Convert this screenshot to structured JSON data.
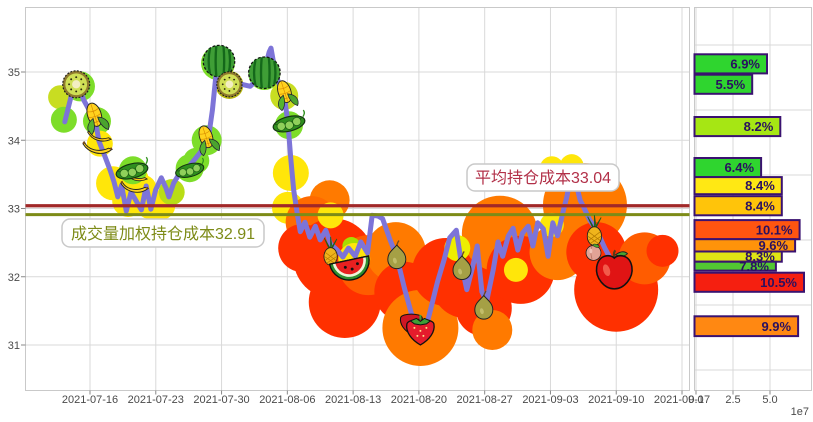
{
  "colors": {
    "background": "#ffffff",
    "grid": "#d9d9d9",
    "frame": "#c9c9c9",
    "axis_text": "#4a4a4a",
    "price_line": "#7d74d8",
    "avg_cost_line": "#a12828",
    "vwap_cost_line": "#7d8b17",
    "avg_label_text": "#b23048",
    "vwap_label_text": "#7d8b17",
    "bar_border": "#3a1270",
    "bar_text": "#2a1060"
  },
  "chart_data": [
    {
      "type": "line",
      "name": "price-with-holding-cost",
      "x_tick_labels": [
        "2021-07-16",
        "2021-07-23",
        "2021-07-30",
        "2021-08-06",
        "2021-08-13",
        "2021-08-20",
        "2021-08-27",
        "2021-09-03",
        "2021-09-10",
        "2021-09-17"
      ],
      "y_tick_labels": [
        "35",
        "34",
        "33",
        "32",
        "31"
      ],
      "y_ticks": [
        35,
        34,
        33,
        32,
        31
      ],
      "ylim": [
        30.4,
        35.9
      ],
      "grid": true,
      "cost_lines": [
        {
          "label": "平均持仓成本33.04",
          "value": 33.04,
          "color": "#a12828",
          "text_color": "#b23048"
        },
        {
          "label": "成交量加权持仓成本32.91",
          "value": 32.91,
          "color": "#7d8b17",
          "text_color": "#7d8b17"
        }
      ],
      "series": [
        {
          "name": "price",
          "points": [
            [
              4.0,
              34.27
            ],
            [
              4.7,
              34.66
            ],
            [
              5.3,
              34.87
            ],
            [
              6.0,
              34.59
            ],
            [
              6.7,
              34.41
            ],
            [
              7.2,
              34.31
            ],
            [
              7.6,
              33.99
            ],
            [
              8.2,
              33.78
            ],
            [
              8.8,
              33.56
            ],
            [
              9.2,
              33.39
            ],
            [
              9.6,
              33.17
            ],
            [
              10.0,
              33.34
            ],
            [
              10.5,
              32.96
            ],
            [
              11.0,
              33.24
            ],
            [
              11.5,
              33.12
            ],
            [
              12.1,
              32.98
            ],
            [
              12.6,
              33.33
            ],
            [
              13.1,
              32.99
            ],
            [
              13.6,
              33.27
            ],
            [
              14.2,
              33.45
            ],
            [
              14.7,
              33.3
            ],
            [
              15.0,
              33.17
            ],
            [
              15.5,
              33.37
            ],
            [
              16.2,
              33.53
            ],
            [
              16.9,
              33.58
            ],
            [
              17.8,
              33.73
            ],
            [
              18.6,
              33.87
            ],
            [
              19.1,
              33.95
            ],
            [
              19.6,
              34.44
            ],
            [
              20.1,
              35.12
            ],
            [
              20.6,
              34.88
            ],
            [
              21.3,
              34.82
            ],
            [
              22.0,
              34.77
            ],
            [
              22.7,
              34.82
            ],
            [
              23.6,
              34.79
            ],
            [
              24.3,
              34.88
            ],
            [
              25.0,
              34.97
            ],
            [
              25.6,
              35.29
            ],
            [
              25.8,
              35.35
            ],
            [
              26.3,
              34.96
            ],
            [
              26.9,
              34.74
            ],
            [
              27.2,
              34.66
            ],
            [
              27.6,
              34.24
            ],
            [
              27.9,
              33.71
            ],
            [
              28.2,
              33.27
            ],
            [
              28.6,
              32.9
            ],
            [
              28.9,
              32.66
            ],
            [
              29.4,
              32.8
            ],
            [
              29.9,
              32.58
            ],
            [
              30.5,
              32.74
            ],
            [
              31.0,
              32.54
            ],
            [
              31.6,
              32.68
            ],
            [
              32.1,
              32.48
            ],
            [
              32.8,
              32.39
            ],
            [
              33.4,
              32.29
            ],
            [
              34.0,
              32.42
            ],
            [
              34.7,
              32.3
            ],
            [
              35.3,
              32.51
            ],
            [
              36.0,
              32.35
            ],
            [
              36.5,
              32.9
            ],
            [
              37.1,
              32.89
            ],
            [
              37.6,
              32.85
            ],
            [
              38.4,
              32.54
            ],
            [
              39.1,
              32.29
            ],
            [
              39.9,
              31.84
            ],
            [
              40.6,
              31.48
            ],
            [
              41.3,
              31.22
            ],
            [
              42.0,
              31.16
            ],
            [
              42.6,
              31.48
            ],
            [
              43.4,
              31.92
            ],
            [
              44.1,
              32.25
            ],
            [
              44.7,
              32.57
            ],
            [
              45.4,
              32.68
            ],
            [
              46.0,
              32.14
            ],
            [
              46.5,
              31.81
            ],
            [
              47.1,
              32.13
            ],
            [
              47.6,
              32.45
            ],
            [
              48.1,
              31.78
            ],
            [
              48.6,
              31.64
            ],
            [
              49.3,
              32.1
            ],
            [
              49.8,
              32.51
            ],
            [
              50.3,
              32.3
            ],
            [
              50.9,
              32.6
            ],
            [
              51.4,
              32.71
            ],
            [
              51.9,
              32.39
            ],
            [
              52.4,
              32.64
            ],
            [
              53.0,
              32.74
            ],
            [
              53.5,
              32.45
            ],
            [
              54.0,
              32.79
            ],
            [
              54.6,
              32.7
            ],
            [
              55.1,
              32.3
            ],
            [
              55.6,
              32.79
            ],
            [
              56.1,
              32.6
            ],
            [
              56.7,
              32.96
            ],
            [
              57.1,
              33.18
            ],
            [
              57.6,
              33.56
            ],
            [
              58.1,
              33.34
            ],
            [
              58.5,
              33.12
            ],
            [
              59.0,
              32.98
            ],
            [
              59.5,
              32.83
            ],
            [
              60.1,
              32.71
            ],
            [
              60.6,
              32.57
            ],
            [
              61.1,
              32.42
            ],
            [
              61.6,
              32.29
            ],
            [
              62.2,
              32.19
            ],
            [
              62.7,
              32.1
            ],
            [
              63.1,
              32.06
            ]
          ]
        }
      ],
      "bubbles": [
        [
          3.5,
          34.63,
          12,
          "#c8dd22"
        ],
        [
          3.9,
          34.3,
          13,
          "#7ddd2a"
        ],
        [
          5.6,
          34.79,
          15,
          "#7ddd2a"
        ],
        [
          7.4,
          34.28,
          14,
          "#7ddd2a"
        ],
        [
          7.7,
          33.95,
          13,
          "#ffe60a"
        ],
        [
          9.1,
          33.37,
          17,
          "#ffe60a"
        ],
        [
          10.7,
          33.11,
          16,
          "#ffe60a"
        ],
        [
          11.4,
          33.42,
          14,
          "#ffe60a"
        ],
        [
          12.3,
          33.3,
          13,
          "#ffe60a"
        ],
        [
          13.0,
          33.05,
          14,
          "#ffe60a"
        ],
        [
          14.1,
          33.05,
          15,
          "#ffe60a"
        ],
        [
          11.2,
          33.56,
          14,
          "#7ddd2a"
        ],
        [
          15.3,
          33.24,
          13,
          "#b8dd16"
        ],
        [
          17.2,
          33.59,
          14,
          "#7ddd2a"
        ],
        [
          17.9,
          33.7,
          13,
          "#7ddd2a"
        ],
        [
          19.0,
          34.0,
          15,
          "#7ddd2a"
        ],
        [
          20.2,
          35.13,
          17,
          "#7ddd2a"
        ],
        [
          21.4,
          34.81,
          14,
          "#b5b411"
        ],
        [
          25.1,
          34.97,
          16,
          "#7ddd2a"
        ],
        [
          27.2,
          34.65,
          14,
          "#c8dd22"
        ],
        [
          27.7,
          34.22,
          14,
          "#7ddd2a"
        ],
        [
          27.9,
          33.52,
          18,
          "#ffe60a"
        ],
        [
          27.6,
          33.01,
          16,
          "#ffe60a"
        ],
        [
          32.0,
          33.12,
          20,
          "#ff7a00"
        ],
        [
          30.1,
          32.8,
          26,
          "#ff6a00"
        ],
        [
          29.1,
          32.42,
          24,
          "#ff3000"
        ],
        [
          32.4,
          32.27,
          40,
          "#ff3000"
        ],
        [
          33.6,
          31.63,
          36,
          "#ff3000"
        ],
        [
          36.1,
          32.17,
          30,
          "#ff5c00"
        ],
        [
          39.0,
          32.36,
          30,
          "#ff7a00"
        ],
        [
          39.9,
          31.78,
          30,
          "#ff3000"
        ],
        [
          41.6,
          31.25,
          38,
          "#ff7a00"
        ],
        [
          44.3,
          32.07,
          34,
          "#ff3000"
        ],
        [
          46.4,
          31.89,
          34,
          "#ff3000"
        ],
        [
          48.3,
          31.54,
          28,
          "#ff3000"
        ],
        [
          49.2,
          31.22,
          20,
          "#ff7a00"
        ],
        [
          50.0,
          32.63,
          38,
          "#ff7a00"
        ],
        [
          52.2,
          32.1,
          34,
          "#ff3000"
        ],
        [
          56.1,
          32.36,
          28,
          "#ff7a00"
        ],
        [
          59.0,
          33.05,
          42,
          "#ff7a00"
        ],
        [
          60.2,
          32.36,
          30,
          "#ff3000"
        ],
        [
          62.3,
          31.81,
          42,
          "#ff3000"
        ],
        [
          65.3,
          32.27,
          26,
          "#ff5c00"
        ],
        [
          67.2,
          32.38,
          16,
          "#ff3000"
        ],
        [
          32.1,
          32.9,
          13,
          "#ffe60a"
        ],
        [
          34.3,
          32.45,
          9,
          "#a8dd00"
        ],
        [
          34.6,
          32.26,
          16,
          "#ffe60a"
        ],
        [
          45.5,
          32.42,
          13,
          "#eeee00"
        ],
        [
          51.7,
          32.1,
          12,
          "#ffe60a"
        ],
        [
          55.5,
          33.59,
          12,
          "#ffe60a"
        ],
        [
          57.6,
          33.62,
          12,
          "#ffe60a"
        ],
        [
          55.5,
          32.76,
          12,
          "#ffe60a"
        ]
      ],
      "fruits": [
        {
          "type": "kiwi",
          "day": 5.2,
          "price": 34.82,
          "size": 30
        },
        {
          "type": "corn",
          "day": 7.2,
          "price": 34.34,
          "size": 32
        },
        {
          "type": "banana",
          "day": 7.6,
          "price": 33.97,
          "size": 32
        },
        {
          "type": "banana",
          "day": 11.5,
          "price": 33.39,
          "size": 30
        },
        {
          "type": "peas",
          "day": 11.1,
          "price": 33.55,
          "size": 36
        },
        {
          "type": "peas",
          "day": 17.2,
          "price": 33.56,
          "size": 32
        },
        {
          "type": "corn",
          "day": 19.0,
          "price": 34.02,
          "size": 30
        },
        {
          "type": "watermelon",
          "day": 20.3,
          "price": 35.16,
          "size": 36
        },
        {
          "type": "kiwi",
          "day": 21.4,
          "price": 34.82,
          "size": 28
        },
        {
          "type": "watermelon",
          "day": 25.1,
          "price": 34.99,
          "size": 36
        },
        {
          "type": "corn",
          "day": 27.3,
          "price": 34.68,
          "size": 30
        },
        {
          "type": "peas",
          "day": 27.7,
          "price": 34.24,
          "size": 36
        },
        {
          "type": "pineapple",
          "day": 32.1,
          "price": 32.36,
          "size": 28
        },
        {
          "type": "melon-slice",
          "day": 34.0,
          "price": 32.29,
          "size": 42
        },
        {
          "type": "pear",
          "day": 39.1,
          "price": 32.3,
          "size": 30
        },
        {
          "type": "strawberry",
          "day": 41.6,
          "price": 31.25,
          "size": 40
        },
        {
          "type": "pear",
          "day": 46.0,
          "price": 32.14,
          "size": 30
        },
        {
          "type": "pear",
          "day": 48.3,
          "price": 31.56,
          "size": 30
        },
        {
          "type": "pineapple",
          "day": 60.0,
          "price": 32.66,
          "size": 30
        },
        {
          "type": "peach",
          "day": 59.9,
          "price": 32.35,
          "size": 26
        },
        {
          "type": "apple",
          "day": 62.1,
          "price": 32.08,
          "size": 44
        }
      ]
    },
    {
      "type": "bar",
      "name": "chip-distribution",
      "orientation": "horizontal",
      "x_tick_labels": [
        "0.0",
        "2.5",
        "5.0"
      ],
      "x_unit": "1e7",
      "bars": [
        {
          "label": "6.9%",
          "value_e7": 4.9,
          "band": [
            35.26,
            34.98
          ],
          "color": "#2fd52f"
        },
        {
          "label": "5.5%",
          "value_e7": 3.9,
          "band": [
            34.96,
            34.68
          ],
          "color": "#2fd52f"
        },
        {
          "label": "8.2%",
          "value_e7": 5.8,
          "band": [
            34.34,
            34.06
          ],
          "color": "#a6e614"
        },
        {
          "label": "6.4%",
          "value_e7": 4.5,
          "band": [
            33.74,
            33.46
          ],
          "color": "#2fd52f"
        },
        {
          "label": "8.4%",
          "value_e7": 5.9,
          "band": [
            33.46,
            33.21
          ],
          "color": "#ffe814"
        },
        {
          "label": "8.4%",
          "value_e7": 5.9,
          "band": [
            33.18,
            32.9
          ],
          "color": "#ffc40a"
        },
        {
          "label": "10.1%",
          "value_e7": 7.1,
          "band": [
            32.83,
            32.55
          ],
          "color": "#ff5510"
        },
        {
          "label": "9.6%",
          "value_e7": 6.8,
          "band": [
            32.55,
            32.37
          ],
          "color": "#ff930a"
        },
        {
          "label": "8.3%",
          "value_e7": 5.9,
          "band": [
            32.37,
            32.22
          ],
          "color": "#dfe414"
        },
        {
          "label": "7.8%",
          "value_e7": 5.5,
          "band": [
            32.22,
            32.09
          ],
          "color": "#52c832"
        },
        {
          "label": "10.5%",
          "value_e7": 7.4,
          "band": [
            32.06,
            31.78
          ],
          "color": "#f51f10"
        },
        {
          "label": "9.9%",
          "value_e7": 7.0,
          "band": [
            31.42,
            31.13
          ],
          "color": "#ff8812"
        }
      ]
    }
  ]
}
